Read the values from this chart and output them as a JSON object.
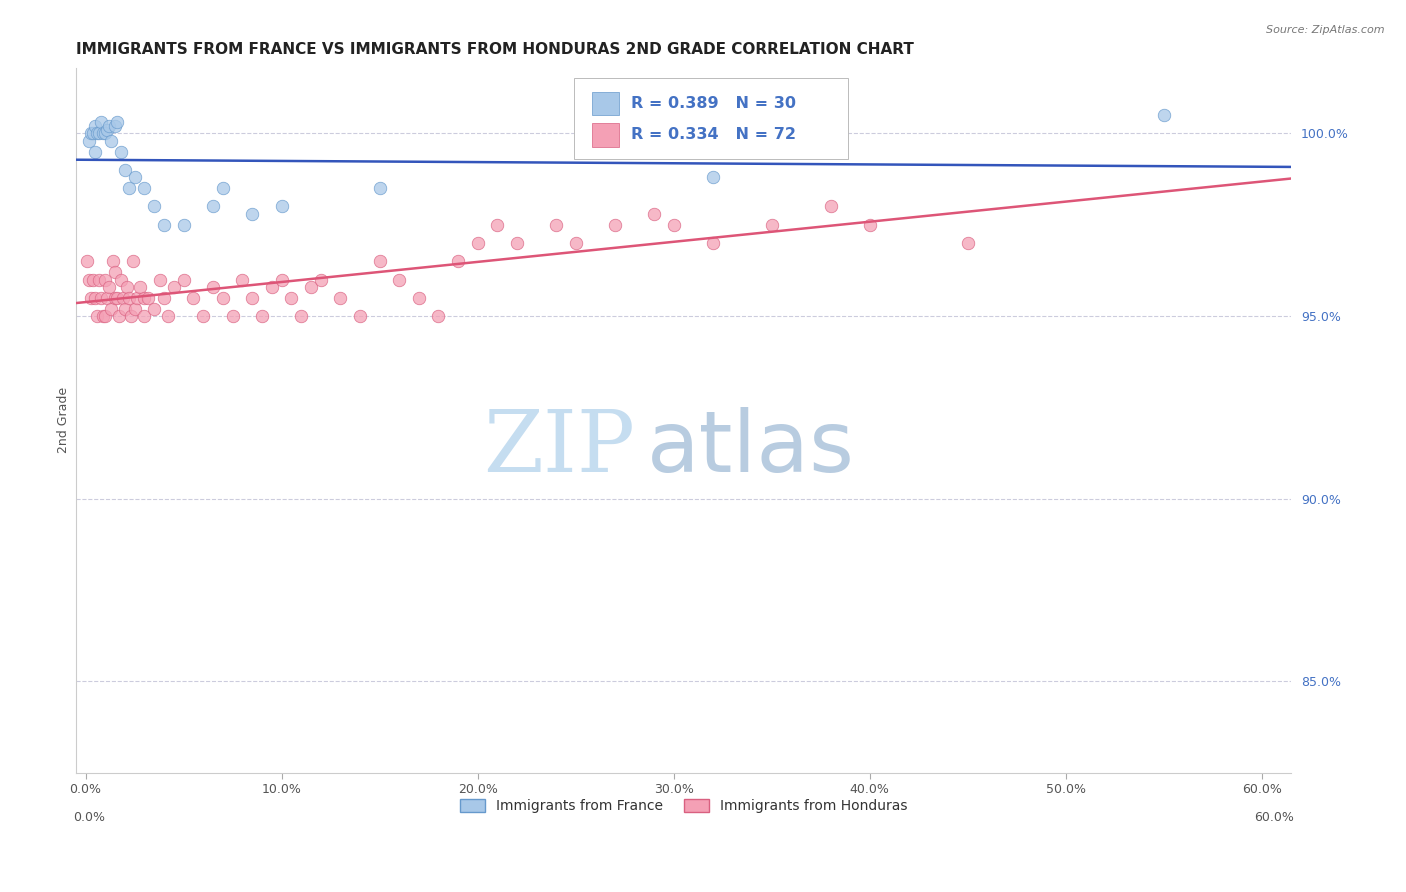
{
  "title": "IMMIGRANTS FROM FRANCE VS IMMIGRANTS FROM HONDURAS 2ND GRADE CORRELATION CHART",
  "source": "Source: ZipAtlas.com",
  "ylabel_left": "2nd Grade",
  "xlabel_vals": [
    0.0,
    10.0,
    20.0,
    30.0,
    40.0,
    50.0,
    60.0
  ],
  "ylabel_right_vals": [
    100.0,
    95.0,
    90.0,
    85.0
  ],
  "y_min": 82.5,
  "y_max": 101.8,
  "x_min": -0.5,
  "x_max": 61.5,
  "france_color": "#a8c8e8",
  "france_edge_color": "#6699cc",
  "honduras_color": "#f4a0b5",
  "honduras_edge_color": "#d96080",
  "france_line_color": "#3355bb",
  "honduras_line_color": "#dd5577",
  "france_R": 0.389,
  "france_N": 30,
  "honduras_R": 0.334,
  "honduras_N": 72,
  "legend_color": "#4472c4",
  "france_x": [
    0.2,
    0.3,
    0.4,
    0.5,
    0.5,
    0.6,
    0.7,
    0.8,
    0.9,
    1.0,
    1.1,
    1.2,
    1.3,
    1.5,
    1.6,
    1.8,
    2.0,
    2.2,
    2.5,
    3.0,
    3.5,
    4.0,
    5.0,
    6.5,
    7.0,
    8.5,
    10.0,
    15.0,
    32.0,
    55.0
  ],
  "france_y": [
    99.8,
    100.0,
    100.0,
    100.2,
    99.5,
    100.0,
    100.0,
    100.3,
    100.0,
    100.0,
    100.1,
    100.2,
    99.8,
    100.2,
    100.3,
    99.5,
    99.0,
    98.5,
    98.8,
    98.5,
    98.0,
    97.5,
    97.5,
    98.0,
    98.5,
    97.8,
    98.0,
    98.5,
    98.8,
    100.5
  ],
  "honduras_x": [
    0.1,
    0.2,
    0.3,
    0.4,
    0.5,
    0.6,
    0.7,
    0.8,
    0.9,
    1.0,
    1.0,
    1.1,
    1.2,
    1.3,
    1.4,
    1.5,
    1.5,
    1.6,
    1.7,
    1.8,
    1.9,
    2.0,
    2.1,
    2.2,
    2.3,
    2.4,
    2.5,
    2.6,
    2.8,
    3.0,
    3.0,
    3.2,
    3.5,
    3.8,
    4.0,
    4.2,
    4.5,
    5.0,
    5.5,
    6.0,
    6.5,
    7.0,
    7.5,
    8.0,
    8.5,
    9.0,
    9.5,
    10.0,
    10.5,
    11.0,
    11.5,
    12.0,
    13.0,
    14.0,
    15.0,
    16.0,
    17.0,
    18.0,
    19.0,
    20.0,
    21.0,
    22.0,
    24.0,
    25.0,
    27.0,
    29.0,
    30.0,
    32.0,
    35.0,
    38.0,
    40.0,
    45.0
  ],
  "honduras_y": [
    96.5,
    96.0,
    95.5,
    96.0,
    95.5,
    95.0,
    96.0,
    95.5,
    95.0,
    96.0,
    95.0,
    95.5,
    95.8,
    95.2,
    96.5,
    96.2,
    95.5,
    95.5,
    95.0,
    96.0,
    95.5,
    95.2,
    95.8,
    95.5,
    95.0,
    96.5,
    95.2,
    95.5,
    95.8,
    95.5,
    95.0,
    95.5,
    95.2,
    96.0,
    95.5,
    95.0,
    95.8,
    96.0,
    95.5,
    95.0,
    95.8,
    95.5,
    95.0,
    96.0,
    95.5,
    95.0,
    95.8,
    96.0,
    95.5,
    95.0,
    95.8,
    96.0,
    95.5,
    95.0,
    96.5,
    96.0,
    95.5,
    95.0,
    96.5,
    97.0,
    97.5,
    97.0,
    97.5,
    97.0,
    97.5,
    97.8,
    97.5,
    97.0,
    97.5,
    98.0,
    97.5,
    97.0
  ],
  "grid_color": "#ccccdd",
  "background_color": "#ffffff",
  "title_fontsize": 11,
  "axis_label_fontsize": 9,
  "tick_fontsize": 9,
  "marker_size": 9,
  "watermark_zip": "ZIP",
  "watermark_atlas": "atlas",
  "watermark_color_zip": "#c5ddf0",
  "watermark_color_atlas": "#b8cce0"
}
